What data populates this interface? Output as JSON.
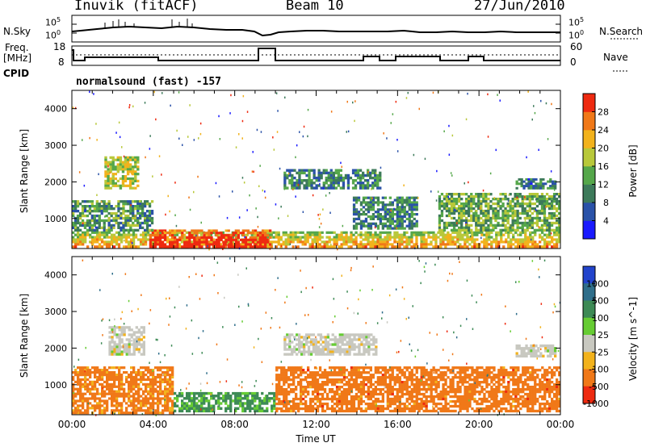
{
  "header": {
    "station": "Inuvik (fitACF)",
    "beam": "Beam 10",
    "date": "27/Jun/2010"
  },
  "sky_panel": {
    "left_label": "N.Sky",
    "right_label": "N.Search",
    "ticks": [
      "10^5",
      "10^0"
    ]
  },
  "freq_panel": {
    "left_label_1": "Freq.",
    "left_label_2": "[MHz]",
    "right_label": "Nave",
    "left_ticks": [
      "18",
      "8"
    ],
    "right_ticks": [
      "60",
      "0"
    ]
  },
  "cpid": {
    "label": "CPID",
    "value": "normalsound (fast) -157"
  },
  "chart_data": [
    {
      "type": "heatmap",
      "name": "power",
      "ylabel": "Slant Range [km]",
      "xlabel": "",
      "x_ticks": [
        "00:00",
        "04:00",
        "08:00",
        "12:00",
        "16:00",
        "20:00",
        "00:00"
      ],
      "y_ticks": [
        1000,
        2000,
        3000,
        4000
      ],
      "ylim": [
        180,
        4500
      ],
      "colorbar": {
        "label": "Power [dB]",
        "ticks": [
          4,
          8,
          12,
          16,
          20,
          24,
          28
        ],
        "colors": [
          "#1a1aff",
          "#2a52a8",
          "#3d7a5a",
          "#55a74a",
          "#b8c83a",
          "#f2b21c",
          "#f07818",
          "#ee2a10"
        ],
        "range": [
          0,
          32
        ]
      },
      "regions": [
        {
          "t0": 0.0,
          "t1": 24.0,
          "r0": 200,
          "r1": 650,
          "value": 20
        },
        {
          "t0": 3.8,
          "t1": 9.8,
          "r0": 200,
          "r1": 700,
          "value": 30
        },
        {
          "t0": 0.0,
          "t1": 4.0,
          "r0": 650,
          "r1": 1500,
          "value": 12
        },
        {
          "t0": 1.6,
          "t1": 3.3,
          "r0": 1800,
          "r1": 2700,
          "value": 18
        },
        {
          "t0": 10.4,
          "t1": 15.2,
          "r0": 1800,
          "r1": 2350,
          "value": 10
        },
        {
          "t0": 13.8,
          "t1": 17.0,
          "r0": 700,
          "r1": 1600,
          "value": 10
        },
        {
          "t0": 18.0,
          "t1": 24.0,
          "r0": 650,
          "r1": 1700,
          "value": 14
        },
        {
          "t0": 21.8,
          "t1": 23.8,
          "r0": 1800,
          "r1": 2100,
          "value": 9
        }
      ]
    },
    {
      "type": "heatmap",
      "name": "velocity",
      "ylabel": "Slant Range [km]",
      "xlabel": "Time UT",
      "x_ticks": [
        "00:00",
        "04:00",
        "08:00",
        "12:00",
        "16:00",
        "20:00",
        "00:00"
      ],
      "y_ticks": [
        1000,
        2000,
        3000,
        4000
      ],
      "ylim": [
        180,
        4500
      ],
      "colorbar": {
        "label": "Velocity [m s^-1]",
        "ticks": [
          "1000",
          "500",
          "100",
          "25",
          "-25",
          "-100",
          "-500",
          "-1000"
        ],
        "colors": [
          "#2244cc",
          "#2f6e8a",
          "#3d8a55",
          "#66cc33",
          "#c8c8c0",
          "#f2b21c",
          "#f07818",
          "#ee2a10"
        ]
      },
      "regions": [
        {
          "t0": 0.0,
          "t1": 5.0,
          "r0": 200,
          "r1": 1500,
          "value": -200
        },
        {
          "t0": 5.0,
          "t1": 10.0,
          "r0": 250,
          "r1": 800,
          "value": 150
        },
        {
          "t0": 1.8,
          "t1": 3.6,
          "r0": 1800,
          "r1": 2600,
          "value": 0
        },
        {
          "t0": 10.4,
          "t1": 15.0,
          "r0": 1800,
          "r1": 2400,
          "value": 0
        },
        {
          "t0": 10.0,
          "t1": 24.0,
          "r0": 250,
          "r1": 1500,
          "value": -300
        },
        {
          "t0": 21.8,
          "t1": 23.8,
          "r0": 1750,
          "r1": 2100,
          "value": 0
        }
      ]
    }
  ]
}
